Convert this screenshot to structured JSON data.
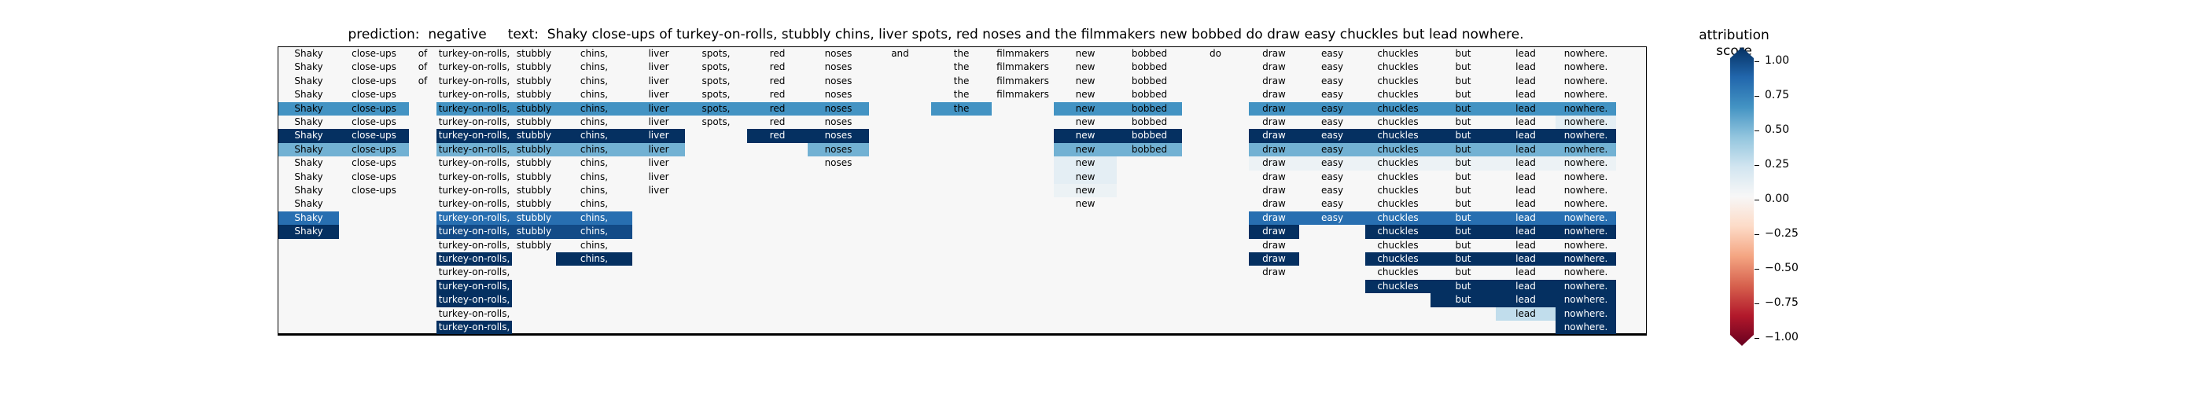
{
  "title": {
    "prediction_label": "prediction:",
    "prediction": "negative",
    "text_label": "text:",
    "text": "Shaky close-ups of turkey-on-rolls, stubbly chins, liver spots, red noses and the filmmakers new bobbed do draw easy chuckles but lead nowhere."
  },
  "colorbar": {
    "title": "attribution score",
    "ticks": [
      "1.00",
      "0.75",
      "0.50",
      "0.25",
      "0.00",
      "−0.25",
      "−0.50",
      "−0.75",
      "−1.00"
    ],
    "tick_values": [
      1.0,
      0.75,
      0.5,
      0.25,
      0.0,
      -0.25,
      -0.5,
      -0.75,
      -1.0
    ],
    "colormap": "RdBu",
    "range": [
      -1,
      1
    ]
  },
  "chart_data": {
    "type": "heatmap",
    "title": "prediction:  negative     text:  Shaky close-ups of turkey-on-rolls, stubbly chins, liver spots, red noses and the filmmakers new bobbed do draw easy chuckles but lead nowhere.",
    "tokens": [
      "Shaky",
      "close-ups",
      "of",
      "turkey-on-rolls,",
      "stubbly",
      "chins,",
      "liver",
      "spots,",
      "red",
      "noses",
      "and",
      "the",
      "filmmakers",
      "new",
      "bobbed",
      "do",
      "draw",
      "easy",
      "chuckles",
      "but",
      "lead",
      "nowhere."
    ],
    "rows": [
      {
        "present": [
          0,
          1,
          2,
          3,
          4,
          5,
          6,
          7,
          8,
          9,
          10,
          11,
          12,
          13,
          14,
          15,
          16,
          17,
          18,
          19,
          20,
          21
        ],
        "values": [
          0,
          0,
          0,
          0,
          0,
          0,
          0,
          0,
          0,
          0,
          0,
          0,
          0,
          0,
          0,
          0,
          0,
          0,
          0,
          0,
          0,
          0
        ]
      },
      {
        "present": [
          0,
          1,
          2,
          3,
          4,
          5,
          6,
          7,
          8,
          9,
          11,
          12,
          13,
          14,
          16,
          17,
          18,
          19,
          20,
          21
        ],
        "values": [
          0,
          0,
          0,
          0,
          0,
          0,
          0,
          0,
          0,
          0,
          0,
          0,
          0,
          0,
          0,
          0,
          0,
          0,
          0,
          0,
          0,
          0
        ]
      },
      {
        "present": [
          0,
          1,
          2,
          3,
          4,
          5,
          6,
          7,
          8,
          9,
          11,
          12,
          13,
          14,
          16,
          17,
          18,
          19,
          20,
          21
        ],
        "values": [
          0,
          0,
          0,
          0,
          0,
          0,
          0,
          0,
          0,
          0,
          0,
          0,
          0,
          0,
          0,
          0,
          0,
          0,
          0,
          0,
          0,
          0
        ]
      },
      {
        "present": [
          0,
          1,
          3,
          4,
          5,
          6,
          7,
          8,
          9,
          11,
          12,
          13,
          14,
          16,
          17,
          18,
          19,
          20,
          21
        ],
        "values": [
          0,
          0,
          0,
          0,
          0,
          0,
          0,
          0,
          0,
          0,
          0,
          0,
          0,
          0,
          0,
          0,
          0,
          0,
          0,
          0,
          0,
          0
        ]
      },
      {
        "present": [
          0,
          1,
          3,
          4,
          5,
          6,
          7,
          8,
          9,
          11,
          13,
          14,
          16,
          17,
          18,
          19,
          20,
          21
        ],
        "values": [
          0.55,
          0.55,
          0,
          0.55,
          0.55,
          0.55,
          0.55,
          0.55,
          0.55,
          0.55,
          0,
          0.55,
          0,
          0.55,
          0.55,
          0,
          0.55,
          0.55,
          0.55,
          0.55,
          0.55,
          0.55
        ]
      },
      {
        "present": [
          0,
          1,
          3,
          4,
          5,
          6,
          7,
          8,
          9,
          13,
          14,
          16,
          17,
          18,
          19,
          20,
          21
        ],
        "values": [
          0,
          0,
          0,
          0,
          0,
          0,
          0,
          0,
          0,
          0,
          0,
          0,
          0,
          0,
          0,
          0,
          0,
          0,
          0,
          0,
          0,
          0.05
        ]
      },
      {
        "present": [
          0,
          1,
          3,
          4,
          5,
          6,
          8,
          9,
          13,
          14,
          16,
          17,
          18,
          19,
          20,
          21
        ],
        "values": [
          1,
          1,
          0,
          1,
          1,
          1,
          1,
          0,
          1,
          1,
          0,
          0,
          0,
          1,
          1,
          0,
          1,
          1,
          1,
          1,
          1,
          1
        ]
      },
      {
        "present": [
          0,
          1,
          3,
          4,
          5,
          6,
          9,
          13,
          14,
          16,
          17,
          18,
          19,
          20,
          21
        ],
        "values": [
          0.4,
          0.4,
          0,
          0.4,
          0.4,
          0.4,
          0.4,
          0,
          0,
          0.4,
          0,
          0,
          0,
          0.4,
          0.4,
          0,
          0.4,
          0.4,
          0.4,
          0.4,
          0.4,
          0.4
        ]
      },
      {
        "present": [
          0,
          1,
          3,
          4,
          5,
          6,
          9,
          13,
          16,
          17,
          18,
          19,
          20,
          21
        ],
        "values": [
          0,
          0,
          0,
          0,
          0,
          0,
          0,
          0,
          0,
          0,
          0,
          0,
          0,
          0.05,
          0,
          0,
          0.03,
          0.03,
          0.03,
          0.03,
          0.03,
          0.03
        ]
      },
      {
        "present": [
          0,
          1,
          3,
          4,
          5,
          6,
          13,
          16,
          17,
          18,
          19,
          20,
          21
        ],
        "values": [
          0,
          0,
          0,
          0,
          0,
          0,
          0,
          0,
          0,
          0,
          0,
          0,
          0,
          0.05,
          0,
          0,
          0,
          0,
          0,
          0,
          0,
          0
        ]
      },
      {
        "present": [
          0,
          1,
          3,
          4,
          5,
          6,
          13,
          16,
          17,
          18,
          19,
          20,
          21
        ],
        "values": [
          0,
          0,
          0,
          0,
          0,
          0,
          0,
          0,
          0,
          0,
          0,
          0,
          0,
          0.03,
          0,
          0,
          0,
          0,
          0,
          0,
          0,
          0
        ]
      },
      {
        "present": [
          0,
          3,
          4,
          5,
          13,
          16,
          17,
          18,
          19,
          20,
          21
        ],
        "values": [
          0,
          0,
          0,
          0,
          0,
          0,
          0,
          0,
          0,
          0,
          0,
          0,
          0,
          0,
          0,
          0,
          0,
          0,
          0,
          0,
          0,
          0
        ]
      },
      {
        "present": [
          0,
          3,
          4,
          5,
          16,
          17,
          18,
          19,
          20,
          21
        ],
        "values": [
          0.75,
          0,
          0,
          0.75,
          0.75,
          0.75,
          0,
          0,
          0,
          0,
          0,
          0,
          0,
          0,
          0,
          0,
          0.75,
          0.75,
          0.75,
          0.75,
          0.75,
          0.75
        ]
      },
      {
        "present": [
          0,
          3,
          4,
          5,
          16,
          18,
          19,
          20,
          21
        ],
        "values": [
          1,
          0,
          0,
          0.9,
          0.9,
          0.9,
          0,
          0,
          0,
          0,
          0,
          0,
          0,
          0,
          0,
          0,
          1,
          0,
          1,
          1,
          1,
          1
        ]
      },
      {
        "present": [
          3,
          4,
          5,
          16,
          18,
          19,
          20,
          21
        ],
        "values": [
          0,
          0,
          0,
          0,
          0,
          0,
          0,
          0,
          0,
          0,
          0,
          0,
          0,
          0,
          0,
          0,
          0,
          0,
          0,
          0,
          0,
          0
        ]
      },
      {
        "present": [
          3,
          5,
          16,
          18,
          19,
          20,
          21
        ],
        "values": [
          0,
          0,
          0,
          1,
          0,
          1,
          0,
          0,
          0,
          0,
          0,
          0,
          0,
          0,
          0,
          0,
          1,
          0,
          1,
          1,
          1,
          1
        ]
      },
      {
        "present": [
          3,
          16,
          18,
          19,
          20,
          21
        ],
        "values": [
          0,
          0,
          0,
          0,
          0,
          0,
          0,
          0,
          0,
          0,
          0,
          0,
          0,
          0,
          0,
          0,
          0,
          0,
          0,
          0,
          0,
          0
        ]
      },
      {
        "present": [
          3,
          18,
          19,
          20,
          21
        ],
        "values": [
          0,
          0,
          0,
          1,
          0,
          0,
          0,
          0,
          0,
          0,
          0,
          0,
          0,
          0,
          0,
          0,
          0,
          0,
          1,
          1,
          1,
          1
        ]
      },
      {
        "present": [
          3,
          19,
          20,
          21
        ],
        "values": [
          0,
          0,
          0,
          1,
          0,
          0,
          0,
          0,
          0,
          0,
          0,
          0,
          0,
          0,
          0,
          0,
          0,
          0,
          0,
          1,
          1,
          1
        ]
      },
      {
        "present": [
          3,
          20,
          21
        ],
        "values": [
          0,
          0,
          0,
          0,
          0,
          0,
          0,
          0,
          0,
          0,
          0,
          0,
          0,
          0,
          0,
          0,
          0,
          0,
          0,
          0,
          0.15,
          1
        ]
      },
      {
        "present": [
          3,
          21
        ],
        "values": [
          0,
          0,
          0,
          1,
          0,
          0,
          0,
          0,
          0,
          0,
          0,
          0,
          0,
          0,
          0,
          0,
          0,
          0,
          0,
          0,
          0,
          1
        ]
      }
    ],
    "original_row": {
      "present": [
        0,
        1,
        2,
        3,
        4,
        5,
        6,
        7,
        8,
        9,
        10,
        11,
        12,
        13,
        14,
        15,
        16,
        17,
        18,
        19,
        20,
        21
      ],
      "values": [
        0,
        0,
        0,
        0,
        0,
        0,
        0,
        0,
        0,
        0,
        0,
        0,
        0,
        0,
        0,
        0,
        0,
        0,
        0,
        0,
        0,
        1
      ]
    },
    "colorbar_range": [
      -1,
      1
    ]
  }
}
